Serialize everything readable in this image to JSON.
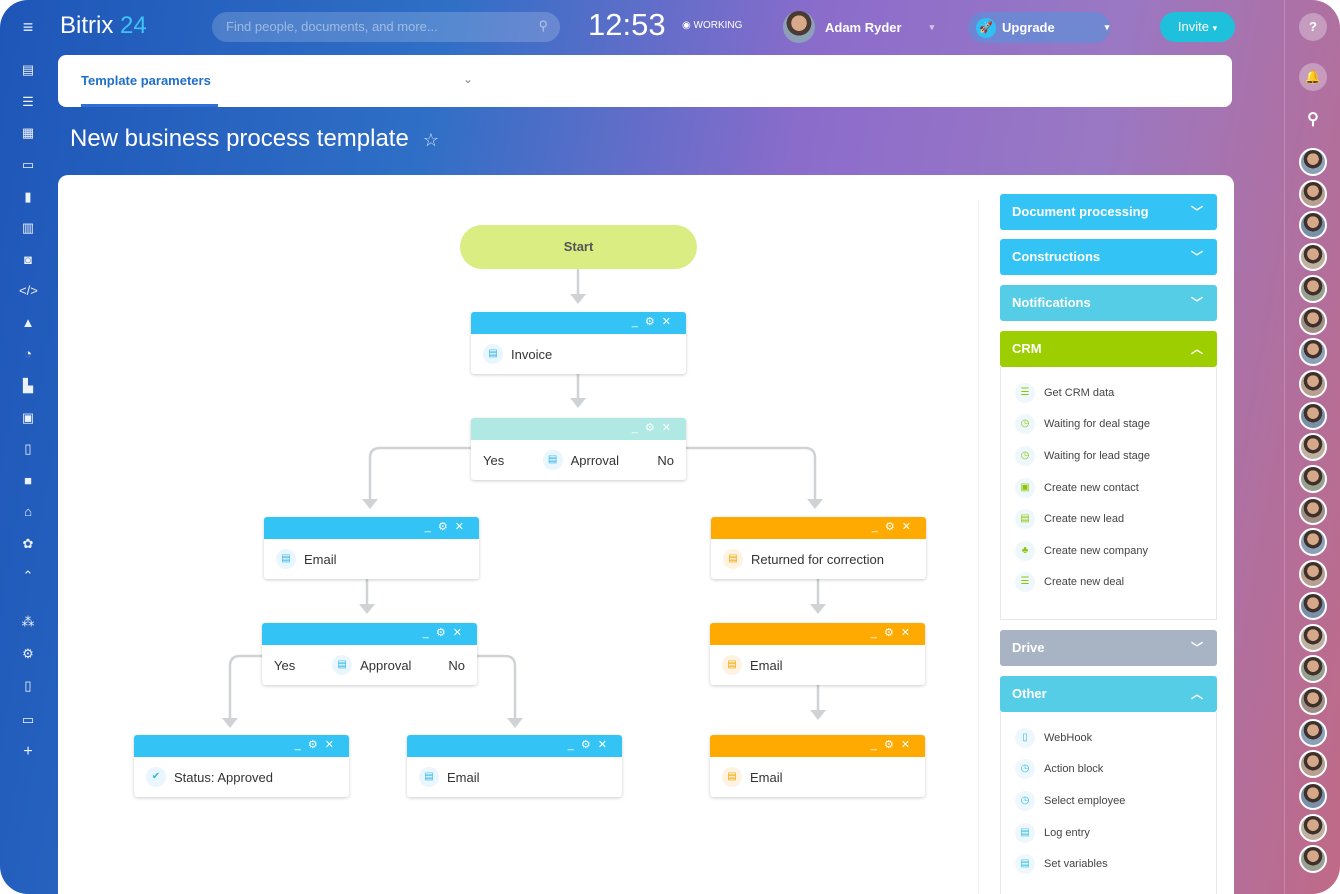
{
  "header": {
    "logo_main": "Bitrix",
    "logo_num": "24",
    "search_placeholder": "Find people, documents, and more...",
    "clock": "12:53",
    "status": "WORKING",
    "user": "Adam Ryder",
    "upgrade": "Upgrade",
    "invite": "Invite"
  },
  "params_tab": "Template parameters",
  "page_title": "New business process template",
  "diagram": {
    "start": "Start",
    "nodes": [
      {
        "label": "Invoice",
        "color": "blue"
      },
      {
        "label": "Aprroval",
        "color": "teal",
        "yes": "Yes",
        "no": "No"
      },
      {
        "label": "Email",
        "color": "blue"
      },
      {
        "label": "Returned for correction",
        "color": "orange"
      },
      {
        "label": "Approval",
        "color": "blue",
        "yes": "Yes",
        "no": "No"
      },
      {
        "label": "Email",
        "color": "orange"
      },
      {
        "label": "Status: Approved",
        "color": "blue"
      },
      {
        "label": "Email",
        "color": "blue"
      },
      {
        "label": "Email",
        "color": "orange"
      }
    ]
  },
  "panel": {
    "groups": [
      {
        "label": "Document processing",
        "color": "#33c4f5",
        "expanded": false
      },
      {
        "label": "Constructions",
        "color": "#33c4f5",
        "expanded": false
      },
      {
        "label": "Notifications",
        "color": "#55cde6",
        "expanded": false
      },
      {
        "label": "CRM",
        "color": "#9dcf00",
        "expanded": true,
        "items": [
          "Get CRM data",
          "Waiting for deal stage",
          "Waiting for lead stage",
          "Create new contact",
          "Create new lead",
          "Create new company",
          "Create new deal"
        ]
      },
      {
        "label": "Drive",
        "color": "#a8b4c4",
        "expanded": false
      },
      {
        "label": "Other",
        "color": "#55cde6",
        "expanded": true,
        "items": [
          "WebHook",
          "Action block",
          "Select employee",
          "Log entry",
          "Set variables"
        ]
      }
    ]
  }
}
